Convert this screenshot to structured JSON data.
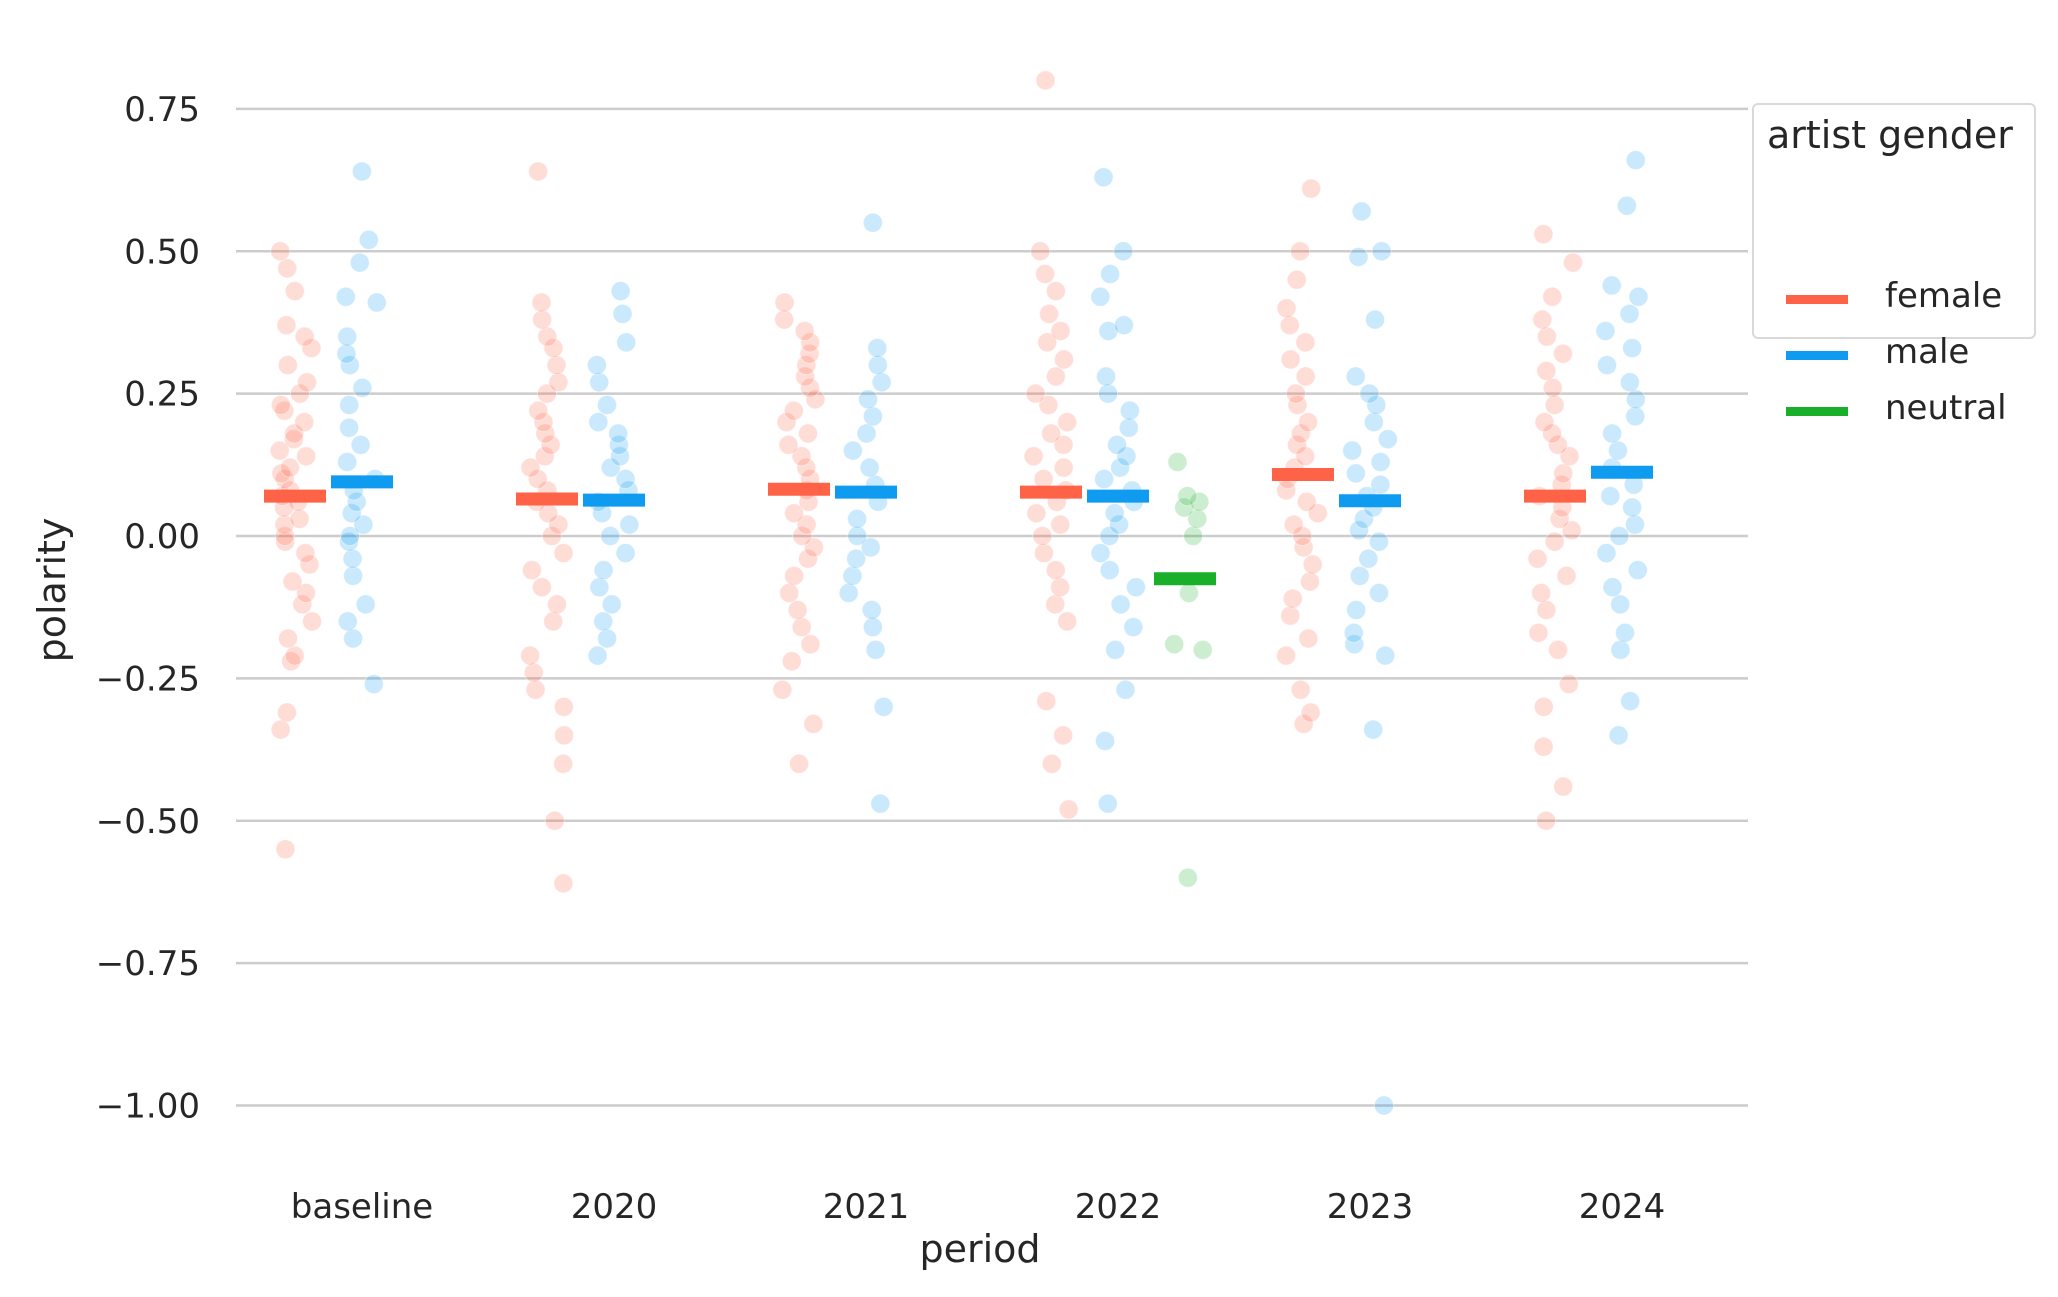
{
  "chart_data": {
    "type": "strip",
    "xlabel": "period",
    "ylabel": "polarity",
    "ylim": [
      -1.1,
      0.82
    ],
    "yticks": [
      0.75,
      0.5,
      0.25,
      0.0,
      -0.25,
      -0.5,
      -0.75,
      -1.0
    ],
    "ytick_labels": [
      "0.75",
      "0.50",
      "0.25",
      "0.00",
      "−0.25",
      "−0.50",
      "−0.75",
      "−1.00"
    ],
    "grid": "horizontal",
    "categories": [
      "baseline",
      "2020",
      "2021",
      "2022",
      "2023",
      "2024"
    ],
    "legend": {
      "title": "artist gender",
      "placement": "upper-right, outside plot"
    },
    "series": [
      {
        "name": "female",
        "color": "#ff6347",
        "means": [
          0.07,
          0.065,
          0.082,
          0.077,
          0.108,
          0.07
        ],
        "points": [
          [
            -0.55,
            -0.34,
            -0.31,
            -0.22,
            -0.21,
            -0.18,
            -0.15,
            -0.12,
            -0.1,
            -0.08,
            -0.05,
            -0.03,
            -0.01,
            0.0,
            0.02,
            0.03,
            0.05,
            0.06,
            0.07,
            0.08,
            0.1,
            0.11,
            0.12,
            0.14,
            0.15,
            0.17,
            0.18,
            0.2,
            0.22,
            0.23,
            0.25,
            0.27,
            0.3,
            0.33,
            0.35,
            0.37,
            0.43,
            0.47,
            0.5
          ],
          [
            -0.61,
            -0.5,
            -0.4,
            -0.35,
            -0.3,
            -0.27,
            -0.24,
            -0.21,
            -0.15,
            -0.12,
            -0.09,
            -0.06,
            -0.03,
            0.0,
            0.02,
            0.04,
            0.06,
            0.08,
            0.1,
            0.12,
            0.14,
            0.16,
            0.18,
            0.2,
            0.22,
            0.25,
            0.27,
            0.3,
            0.33,
            0.35,
            0.38,
            0.41,
            0.64
          ],
          [
            -0.4,
            -0.33,
            -0.27,
            -0.22,
            -0.19,
            -0.16,
            -0.13,
            -0.1,
            -0.07,
            -0.04,
            -0.02,
            0.0,
            0.02,
            0.04,
            0.06,
            0.08,
            0.1,
            0.12,
            0.14,
            0.16,
            0.18,
            0.2,
            0.22,
            0.24,
            0.26,
            0.28,
            0.3,
            0.32,
            0.34,
            0.36,
            0.38,
            0.41
          ],
          [
            -0.48,
            -0.4,
            -0.35,
            -0.29,
            -0.15,
            -0.12,
            -0.09,
            -0.06,
            -0.03,
            0.0,
            0.02,
            0.04,
            0.06,
            0.08,
            0.1,
            0.12,
            0.14,
            0.16,
            0.18,
            0.2,
            0.23,
            0.25,
            0.28,
            0.31,
            0.34,
            0.36,
            0.39,
            0.43,
            0.46,
            0.5,
            0.8
          ],
          [
            -0.33,
            -0.31,
            -0.27,
            -0.21,
            -0.18,
            -0.14,
            -0.11,
            -0.08,
            -0.05,
            -0.02,
            0.0,
            0.02,
            0.04,
            0.06,
            0.08,
            0.1,
            0.12,
            0.14,
            0.16,
            0.18,
            0.2,
            0.23,
            0.25,
            0.28,
            0.31,
            0.34,
            0.37,
            0.4,
            0.45,
            0.5,
            0.61
          ],
          [
            -0.5,
            -0.44,
            -0.37,
            -0.3,
            -0.26,
            -0.2,
            -0.17,
            -0.13,
            -0.1,
            -0.07,
            -0.04,
            -0.01,
            0.01,
            0.03,
            0.05,
            0.07,
            0.09,
            0.11,
            0.14,
            0.16,
            0.18,
            0.2,
            0.23,
            0.26,
            0.29,
            0.32,
            0.35,
            0.38,
            0.42,
            0.48,
            0.53
          ]
        ]
      },
      {
        "name": "male",
        "color": "#0f9bf0",
        "means": [
          0.095,
          0.063,
          0.077,
          0.07,
          0.062,
          0.112
        ],
        "points": [
          [
            -0.26,
            -0.18,
            -0.15,
            -0.12,
            -0.07,
            -0.04,
            -0.01,
            0.0,
            0.02,
            0.04,
            0.06,
            0.08,
            0.1,
            0.13,
            0.16,
            0.19,
            0.23,
            0.26,
            0.3,
            0.32,
            0.35,
            0.41,
            0.42,
            0.48,
            0.52,
            0.64
          ],
          [
            -0.21,
            -0.18,
            -0.15,
            -0.12,
            -0.09,
            -0.06,
            -0.03,
            0.0,
            0.02,
            0.04,
            0.06,
            0.08,
            0.1,
            0.12,
            0.14,
            0.16,
            0.18,
            0.2,
            0.23,
            0.27,
            0.3,
            0.34,
            0.39,
            0.43
          ],
          [
            -0.47,
            -0.3,
            -0.2,
            -0.16,
            -0.13,
            -0.1,
            -0.07,
            -0.04,
            -0.02,
            0.0,
            0.03,
            0.06,
            0.09,
            0.12,
            0.15,
            0.18,
            0.21,
            0.24,
            0.27,
            0.3,
            0.33,
            0.55
          ],
          [
            -0.47,
            -0.36,
            -0.27,
            -0.2,
            -0.16,
            -0.12,
            -0.09,
            -0.06,
            -0.03,
            0.0,
            0.02,
            0.04,
            0.06,
            0.08,
            0.1,
            0.12,
            0.14,
            0.16,
            0.19,
            0.22,
            0.25,
            0.28,
            0.36,
            0.37,
            0.42,
            0.46,
            0.5,
            0.63
          ],
          [
            -1.0,
            -0.34,
            -0.21,
            -0.19,
            -0.17,
            -0.13,
            -0.1,
            -0.07,
            -0.04,
            -0.01,
            0.01,
            0.03,
            0.05,
            0.07,
            0.09,
            0.11,
            0.13,
            0.15,
            0.17,
            0.2,
            0.23,
            0.25,
            0.28,
            0.38,
            0.49,
            0.5,
            0.57
          ],
          [
            -0.35,
            -0.29,
            -0.2,
            -0.17,
            -0.12,
            -0.09,
            -0.06,
            -0.03,
            0.0,
            0.02,
            0.05,
            0.07,
            0.09,
            0.12,
            0.15,
            0.18,
            0.21,
            0.24,
            0.27,
            0.3,
            0.33,
            0.36,
            0.39,
            0.42,
            0.44,
            0.58,
            0.66
          ]
        ]
      },
      {
        "name": "neutral",
        "color": "#1aaf2a",
        "means": [
          null,
          null,
          null,
          -0.075,
          null,
          null
        ],
        "points": [
          [],
          [],
          [],
          [
            -0.6,
            -0.2,
            -0.19,
            -0.1,
            0.0,
            0.03,
            0.05,
            0.06,
            0.07,
            0.13
          ],
          [],
          []
        ]
      }
    ]
  }
}
